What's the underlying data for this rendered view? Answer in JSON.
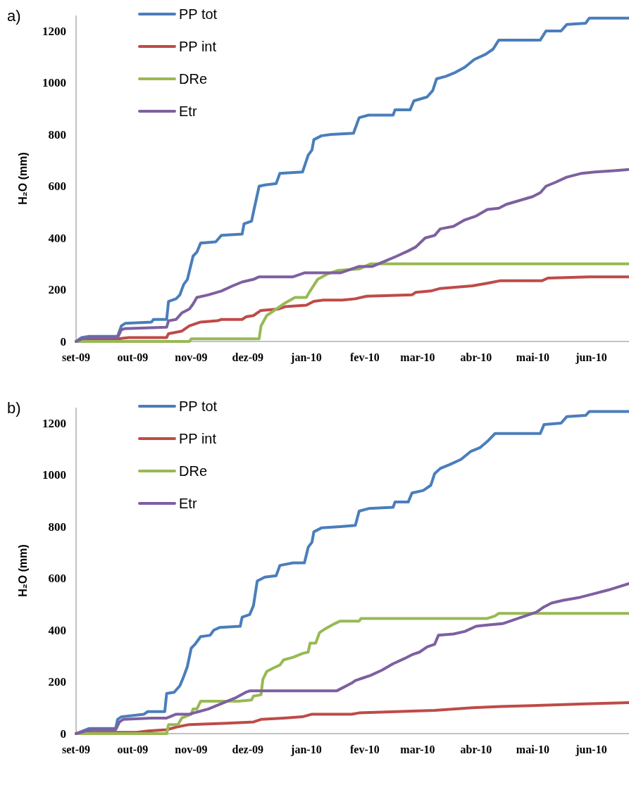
{
  "chart_data": [
    {
      "type": "line",
      "title": "a)",
      "ylabel": "H₂O (mm)",
      "legend": "top left",
      "grid": false,
      "marker": "none",
      "line_style": "solid",
      "xlim": [
        "2009-09-01",
        "2010-06-21"
      ],
      "ylim": [
        0,
        1260
      ],
      "yticks": [
        0,
        200,
        400,
        600,
        800,
        1000,
        1200
      ],
      "xticks": [
        {
          "value": "2009-09-01",
          "label": "set-09"
        },
        {
          "value": "2009-10-01",
          "label": "out-09"
        },
        {
          "value": "2009-11-01",
          "label": "nov-09"
        },
        {
          "value": "2009-12-01",
          "label": "dez-09"
        },
        {
          "value": "2010-01-01",
          "label": "jan-10"
        },
        {
          "value": "2010-02-01",
          "label": "fev-10"
        },
        {
          "value": "2010-03-01",
          "label": "mar-10"
        },
        {
          "value": "2010-04-01",
          "label": "abr-10"
        },
        {
          "value": "2010-05-01",
          "label": "mai-10"
        },
        {
          "value": "2010-06-01",
          "label": "jun-10"
        }
      ],
      "series": [
        {
          "name": "PP tot",
          "color": "#4a7ebb",
          "x": [
            "2009-09-01",
            "2009-09-04",
            "2009-09-08",
            "2009-09-23",
            "2009-09-25",
            "2009-09-27",
            "2009-10-11",
            "2009-10-12",
            "2009-10-19",
            "2009-10-20",
            "2009-10-24",
            "2009-10-26",
            "2009-10-28",
            "2009-10-30",
            "2009-11-02",
            "2009-11-04",
            "2009-11-06",
            "2009-11-14",
            "2009-11-17",
            "2009-11-28",
            "2009-11-29",
            "2009-12-03",
            "2009-12-04",
            "2009-12-07",
            "2009-12-10",
            "2009-12-16",
            "2009-12-18",
            "2009-12-30",
            "2010-01-02",
            "2010-01-04",
            "2010-01-05",
            "2010-01-09",
            "2010-01-14",
            "2010-01-26",
            "2010-01-29",
            "2010-02-03",
            "2010-02-16",
            "2010-02-17",
            "2010-02-25",
            "2010-02-27",
            "2010-03-06",
            "2010-03-09",
            "2010-03-11",
            "2010-03-16",
            "2010-03-21",
            "2010-03-26",
            "2010-03-31",
            "2010-04-06",
            "2010-04-10",
            "2010-04-13",
            "2010-05-05",
            "2010-05-08",
            "2010-05-16",
            "2010-05-19",
            "2010-05-29",
            "2010-05-31",
            "2010-06-21"
          ],
          "values": [
            0,
            15,
            20,
            20,
            60,
            70,
            75,
            85,
            85,
            155,
            165,
            180,
            220,
            240,
            330,
            345,
            380,
            385,
            410,
            415,
            455,
            465,
            500,
            600,
            605,
            610,
            650,
            655,
            720,
            740,
            780,
            795,
            800,
            805,
            865,
            875,
            875,
            895,
            895,
            930,
            945,
            970,
            1015,
            1025,
            1040,
            1060,
            1090,
            1110,
            1130,
            1165,
            1165,
            1200,
            1200,
            1225,
            1230,
            1250,
            1250
          ]
        },
        {
          "name": "PP int",
          "color": "#be4b48",
          "x": [
            "2009-09-01",
            "2009-09-09",
            "2009-09-23",
            "2009-09-29",
            "2009-10-19",
            "2009-10-20",
            "2009-10-27",
            "2009-10-31",
            "2009-11-06",
            "2009-11-15",
            "2009-11-17",
            "2009-11-28",
            "2009-11-30",
            "2009-12-04",
            "2009-12-08",
            "2009-12-17",
            "2009-12-21",
            "2010-01-01",
            "2010-01-05",
            "2010-01-10",
            "2010-01-20",
            "2010-01-27",
            "2010-02-02",
            "2010-02-26",
            "2010-02-28",
            "2010-03-08",
            "2010-03-13",
            "2010-03-30",
            "2010-04-07",
            "2010-04-14",
            "2010-05-06",
            "2010-05-09",
            "2010-05-31",
            "2010-06-21"
          ],
          "values": [
            0,
            10,
            10,
            15,
            15,
            30,
            40,
            60,
            75,
            80,
            85,
            85,
            95,
            100,
            120,
            125,
            135,
            140,
            155,
            160,
            160,
            165,
            175,
            180,
            190,
            195,
            205,
            215,
            225,
            235,
            235,
            245,
            250,
            250
          ]
        },
        {
          "name": "DRe",
          "color": "#98b954",
          "x": [
            "2009-09-01",
            "2009-10-31",
            "2009-11-01",
            "2009-12-07",
            "2009-12-08",
            "2009-12-11",
            "2009-12-17",
            "2009-12-21",
            "2009-12-26",
            "2010-01-01",
            "2010-01-03",
            "2010-01-07",
            "2010-01-12",
            "2010-01-18",
            "2010-01-29",
            "2010-02-04",
            "2010-06-21"
          ],
          "values": [
            0,
            0,
            10,
            10,
            60,
            100,
            130,
            150,
            170,
            170,
            195,
            240,
            260,
            275,
            280,
            300,
            300
          ]
        },
        {
          "name": "Etr",
          "color": "#7d60a0",
          "x": [
            "2009-09-01",
            "2009-09-04",
            "2009-09-08",
            "2009-09-23",
            "2009-09-25",
            "2009-09-27",
            "2009-10-19",
            "2009-10-20",
            "2009-10-24",
            "2009-10-27",
            "2009-10-31",
            "2009-11-02",
            "2009-11-04",
            "2009-11-10",
            "2009-11-17",
            "2009-11-23",
            "2009-11-28",
            "2009-12-04",
            "2009-12-07",
            "2009-12-25",
            "2009-12-31",
            "2010-01-19",
            "2010-01-25",
            "2010-01-29",
            "2010-02-05",
            "2010-02-10",
            "2010-02-18",
            "2010-02-24",
            "2010-02-28",
            "2010-03-05",
            "2010-03-10",
            "2010-03-13",
            "2010-03-20",
            "2010-03-26",
            "2010-04-01",
            "2010-04-07",
            "2010-04-13",
            "2010-04-17",
            "2010-04-24",
            "2010-05-01",
            "2010-05-05",
            "2010-05-08",
            "2010-05-13",
            "2010-05-19",
            "2010-05-27",
            "2010-06-03",
            "2010-06-13",
            "2010-06-21"
          ],
          "values": [
            0,
            10,
            15,
            15,
            45,
            50,
            55,
            80,
            85,
            110,
            125,
            145,
            170,
            180,
            195,
            215,
            230,
            240,
            250,
            250,
            265,
            265,
            280,
            290,
            290,
            305,
            330,
            350,
            365,
            400,
            410,
            435,
            445,
            470,
            485,
            510,
            515,
            530,
            545,
            560,
            575,
            600,
            615,
            635,
            650,
            655,
            660,
            665
          ]
        }
      ]
    },
    {
      "type": "line",
      "title": "b)",
      "ylabel": "H₂O (mm)",
      "legend": "top left",
      "grid": false,
      "marker": "none",
      "line_style": "solid",
      "xlim": [
        "2009-09-01",
        "2010-06-21"
      ],
      "ylim": [
        0,
        1260
      ],
      "yticks": [
        0,
        200,
        400,
        600,
        800,
        1000,
        1200
      ],
      "xticks": [
        {
          "value": "2009-09-01",
          "label": "set-09"
        },
        {
          "value": "2009-10-01",
          "label": "out-09"
        },
        {
          "value": "2009-11-01",
          "label": "nov-09"
        },
        {
          "value": "2009-12-01",
          "label": "dez-09"
        },
        {
          "value": "2010-01-01",
          "label": "jan-10"
        },
        {
          "value": "2010-02-01",
          "label": "fev-10"
        },
        {
          "value": "2010-03-01",
          "label": "mar-10"
        },
        {
          "value": "2010-04-01",
          "label": "abr-10"
        },
        {
          "value": "2010-05-01",
          "label": "mai-10"
        },
        {
          "value": "2010-06-01",
          "label": "jun-10"
        }
      ],
      "series": [
        {
          "name": "PP tot",
          "color": "#4a7ebb",
          "x": [
            "2009-09-01",
            "2009-09-08",
            "2009-09-22",
            "2009-09-23",
            "2009-09-25",
            "2009-10-07",
            "2009-10-09",
            "2009-10-18",
            "2009-10-19",
            "2009-10-23",
            "2009-10-26",
            "2009-10-28",
            "2009-10-30",
            "2009-11-01",
            "2009-11-03",
            "2009-11-06",
            "2009-11-11",
            "2009-11-13",
            "2009-11-16",
            "2009-11-27",
            "2009-11-28",
            "2009-12-02",
            "2009-12-04",
            "2009-12-06",
            "2009-12-10",
            "2009-12-16",
            "2009-12-18",
            "2009-12-25",
            "2009-12-31",
            "2010-01-02",
            "2010-01-04",
            "2010-01-05",
            "2010-01-09",
            "2010-01-19",
            "2010-01-27",
            "2010-01-29",
            "2010-02-03",
            "2010-02-16",
            "2010-02-17",
            "2010-02-24",
            "2010-02-26",
            "2010-03-04",
            "2010-03-08",
            "2010-03-10",
            "2010-03-13",
            "2010-03-18",
            "2010-03-24",
            "2010-03-29",
            "2010-04-03",
            "2010-04-07",
            "2010-04-11",
            "2010-05-05",
            "2010-05-07",
            "2010-05-16",
            "2010-05-19",
            "2010-05-29",
            "2010-05-31",
            "2010-06-21"
          ],
          "values": [
            0,
            20,
            20,
            55,
            65,
            75,
            85,
            85,
            155,
            160,
            185,
            220,
            260,
            330,
            345,
            375,
            380,
            400,
            410,
            415,
            450,
            460,
            495,
            590,
            605,
            610,
            650,
            660,
            660,
            720,
            740,
            780,
            795,
            800,
            805,
            860,
            870,
            875,
            895,
            895,
            930,
            940,
            960,
            1005,
            1025,
            1040,
            1060,
            1090,
            1105,
            1130,
            1160,
            1160,
            1195,
            1200,
            1225,
            1230,
            1245,
            1245
          ]
        },
        {
          "name": "PP int",
          "color": "#be4b48",
          "x": [
            "2009-09-01",
            "2009-09-09",
            "2009-10-03",
            "2009-10-09",
            "2009-10-19",
            "2009-10-24",
            "2009-10-31",
            "2009-11-20",
            "2009-12-04",
            "2009-12-08",
            "2009-12-20",
            "2009-12-30",
            "2010-01-04",
            "2010-01-25",
            "2010-01-29",
            "2010-02-18",
            "2010-03-10",
            "2010-03-30",
            "2010-04-14",
            "2010-05-09",
            "2010-05-29",
            "2010-06-21"
          ],
          "values": [
            0,
            5,
            5,
            10,
            15,
            25,
            35,
            40,
            45,
            55,
            60,
            65,
            75,
            75,
            80,
            85,
            90,
            100,
            105,
            110,
            115,
            120
          ]
        },
        {
          "name": "DRe",
          "color": "#98b954",
          "x": [
            "2009-09-01",
            "2009-10-19",
            "2009-10-20",
            "2009-10-25",
            "2009-10-27",
            "2009-11-01",
            "2009-11-02",
            "2009-11-04",
            "2009-11-06",
            "2009-11-26",
            "2009-12-03",
            "2009-12-04",
            "2009-12-08",
            "2009-12-09",
            "2009-12-11",
            "2009-12-15",
            "2009-12-18",
            "2009-12-20",
            "2009-12-25",
            "2009-12-30",
            "2010-01-02",
            "2010-01-03",
            "2010-01-06",
            "2010-01-08",
            "2010-01-11",
            "2010-01-16",
            "2010-01-19",
            "2010-01-29",
            "2010-01-30",
            "2010-04-07",
            "2010-04-11",
            "2010-04-13",
            "2010-06-21"
          ],
          "values": [
            0,
            0,
            35,
            35,
            60,
            75,
            95,
            95,
            125,
            125,
            130,
            145,
            150,
            210,
            240,
            255,
            265,
            285,
            295,
            310,
            315,
            350,
            350,
            390,
            405,
            425,
            435,
            435,
            445,
            445,
            455,
            465,
            465
          ]
        },
        {
          "name": "Etr",
          "color": "#7d60a0",
          "x": [
            "2009-09-01",
            "2009-09-06",
            "2009-09-09",
            "2009-09-22",
            "2009-09-24",
            "2009-09-26",
            "2009-10-11",
            "2009-10-19",
            "2009-10-24",
            "2009-10-31",
            "2009-11-05",
            "2009-11-10",
            "2009-11-15",
            "2009-11-20",
            "2009-11-25",
            "2009-11-30",
            "2009-12-02",
            "2009-12-30",
            "2010-01-17",
            "2010-01-21",
            "2010-01-25",
            "2010-01-27",
            "2010-01-31",
            "2010-02-04",
            "2010-02-10",
            "2010-02-16",
            "2010-02-22",
            "2010-02-26",
            "2010-03-02",
            "2010-03-06",
            "2010-03-10",
            "2010-03-12",
            "2010-03-20",
            "2010-03-26",
            "2010-04-01",
            "2010-04-07",
            "2010-04-15",
            "2010-04-21",
            "2010-04-27",
            "2010-05-03",
            "2010-05-07",
            "2010-05-11",
            "2010-05-17",
            "2010-05-25",
            "2010-06-02",
            "2010-06-10",
            "2010-06-21"
          ],
          "values": [
            0,
            10,
            15,
            15,
            45,
            55,
            60,
            60,
            75,
            75,
            85,
            95,
            110,
            125,
            140,
            160,
            165,
            165,
            165,
            180,
            195,
            205,
            215,
            225,
            245,
            270,
            290,
            305,
            315,
            335,
            345,
            380,
            385,
            395,
            415,
            420,
            425,
            440,
            455,
            470,
            490,
            505,
            515,
            525,
            540,
            555,
            580
          ]
        }
      ]
    }
  ]
}
